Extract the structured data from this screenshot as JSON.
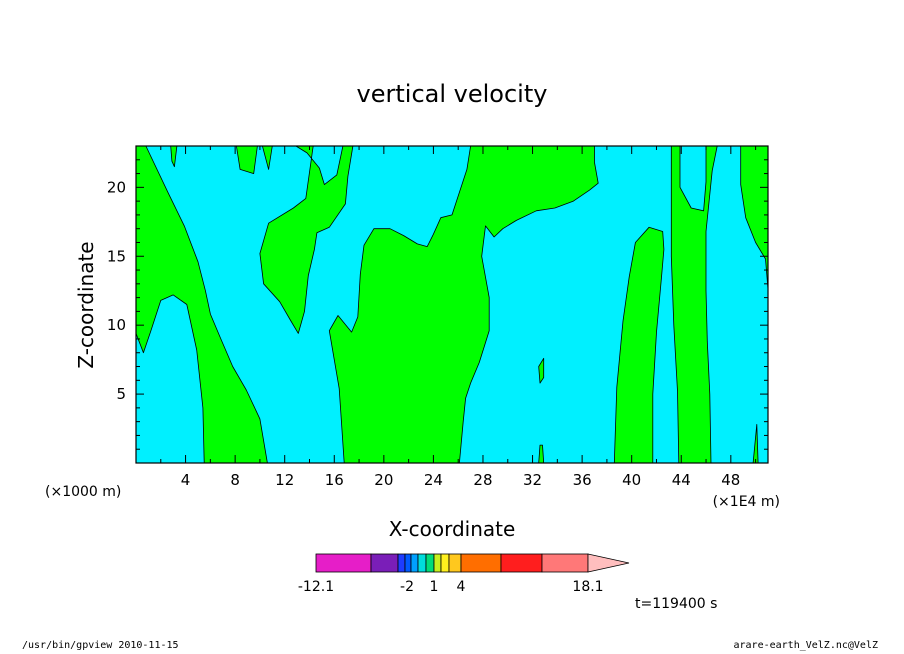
{
  "chart_data": {
    "type": "heatmap",
    "title": "vertical velocity",
    "xlabel": "X-coordinate",
    "ylabel": "Z-coordinate",
    "x_unit_left": "(×1000 m)",
    "x_unit_right": "(×1E4 m)",
    "xlim": [
      0,
      51
    ],
    "ylim": [
      0,
      23
    ],
    "x_ticks": [
      4,
      8,
      12,
      16,
      20,
      24,
      28,
      32,
      36,
      40,
      44,
      48
    ],
    "y_ticks": [
      5,
      10,
      15,
      20
    ],
    "grid": false,
    "fill_colors": {
      "positive": "#00ff00",
      "negative": "#00f0ff"
    },
    "positive_regions": [
      [
        [
          0.0,
          23.0
        ],
        [
          0.8,
          23.0
        ],
        [
          2.6,
          19.6
        ],
        [
          3.9,
          17.2
        ],
        [
          5.0,
          14.6
        ],
        [
          5.6,
          12.5
        ],
        [
          6.0,
          10.8
        ],
        [
          6.8,
          9.1
        ],
        [
          7.8,
          7.0
        ],
        [
          8.9,
          5.3
        ],
        [
          10.0,
          3.2
        ],
        [
          10.6,
          0.0
        ],
        [
          5.5,
          0.0
        ],
        [
          5.4,
          4.0
        ],
        [
          4.9,
          8.2
        ],
        [
          4.1,
          11.5
        ],
        [
          3.0,
          12.2
        ],
        [
          2.0,
          11.8
        ],
        [
          1.2,
          9.6
        ],
        [
          0.6,
          8.0
        ],
        [
          0.0,
          9.4
        ]
      ],
      [
        [
          2.8,
          23.0
        ],
        [
          3.3,
          23.0
        ],
        [
          3.1,
          21.5
        ],
        [
          2.9,
          21.9
        ]
      ],
      [
        [
          8.1,
          23.0
        ],
        [
          9.8,
          23.0
        ],
        [
          9.5,
          21.0
        ],
        [
          8.4,
          21.3
        ]
      ],
      [
        [
          10.2,
          23.0
        ],
        [
          11.0,
          23.0
        ],
        [
          10.7,
          21.3
        ]
      ],
      [
        [
          12.9,
          23.0
        ],
        [
          14.3,
          23.0
        ],
        [
          13.7,
          19.2
        ],
        [
          12.7,
          18.5
        ],
        [
          10.7,
          17.4
        ],
        [
          10.0,
          15.2
        ],
        [
          10.3,
          13.0
        ],
        [
          11.6,
          11.7
        ],
        [
          12.5,
          10.3
        ],
        [
          13.1,
          9.4
        ],
        [
          13.6,
          11.0
        ],
        [
          13.9,
          13.6
        ],
        [
          14.4,
          15.5
        ],
        [
          14.6,
          16.7
        ],
        [
          15.6,
          17.1
        ],
        [
          16.9,
          18.8
        ],
        [
          17.1,
          20.8
        ],
        [
          17.5,
          23.0
        ],
        [
          16.7,
          23.0
        ],
        [
          16.2,
          20.9
        ],
        [
          15.2,
          20.2
        ],
        [
          14.8,
          21.4
        ],
        [
          13.8,
          22.5
        ]
      ],
      [
        [
          16.8,
          0.0
        ],
        [
          16.4,
          5.4
        ],
        [
          15.6,
          9.6
        ],
        [
          16.3,
          10.7
        ],
        [
          17.4,
          9.5
        ],
        [
          17.9,
          10.6
        ],
        [
          18.1,
          13.7
        ],
        [
          18.4,
          15.8
        ],
        [
          19.2,
          17.0
        ],
        [
          20.5,
          17.0
        ],
        [
          21.6,
          16.5
        ],
        [
          22.7,
          15.9
        ],
        [
          23.5,
          15.7
        ],
        [
          24.0,
          16.6
        ],
        [
          24.6,
          17.8
        ],
        [
          25.5,
          18.0
        ],
        [
          26.7,
          21.3
        ],
        [
          27.0,
          23.0
        ],
        [
          37.0,
          23.0
        ],
        [
          37.0,
          21.8
        ],
        [
          37.3,
          20.3
        ],
        [
          36.6,
          19.8
        ],
        [
          35.3,
          19.0
        ],
        [
          33.8,
          18.5
        ],
        [
          32.3,
          18.3
        ],
        [
          30.7,
          17.6
        ],
        [
          29.6,
          17.0
        ],
        [
          28.9,
          16.4
        ],
        [
          28.2,
          17.2
        ],
        [
          27.9,
          15.0
        ],
        [
          28.5,
          12.0
        ],
        [
          28.5,
          9.6
        ],
        [
          27.7,
          7.3
        ],
        [
          27.0,
          5.8
        ],
        [
          26.6,
          4.7
        ],
        [
          26.4,
          3.0
        ],
        [
          26.1,
          0.0
        ]
      ],
      [
        [
          32.5,
          7.0
        ],
        [
          32.9,
          7.6
        ],
        [
          32.9,
          6.2
        ],
        [
          32.6,
          5.8
        ]
      ],
      [
        [
          32.5,
          0.0
        ],
        [
          32.9,
          0.0
        ],
        [
          32.8,
          1.3
        ],
        [
          32.6,
          1.3
        ]
      ],
      [
        [
          38.6,
          0.0
        ],
        [
          38.8,
          5.5
        ],
        [
          39.3,
          10.3
        ],
        [
          39.8,
          13.5
        ],
        [
          40.3,
          16.0
        ],
        [
          41.4,
          17.1
        ],
        [
          42.5,
          16.8
        ],
        [
          42.6,
          15.5
        ],
        [
          42.4,
          13.4
        ],
        [
          42.0,
          9.5
        ],
        [
          41.7,
          5.0
        ],
        [
          41.7,
          0.0
        ]
      ],
      [
        [
          43.2,
          23.0
        ],
        [
          43.9,
          23.0
        ],
        [
          43.9,
          20.0
        ],
        [
          44.8,
          18.5
        ],
        [
          45.8,
          18.3
        ],
        [
          46.0,
          20.4
        ],
        [
          46.0,
          23.0
        ],
        [
          46.9,
          23.0
        ],
        [
          46.5,
          21.2
        ],
        [
          46.0,
          16.8
        ],
        [
          46.0,
          12.5
        ],
        [
          46.1,
          8.8
        ],
        [
          46.3,
          5.0
        ],
        [
          46.4,
          0.0
        ],
        [
          43.8,
          0.0
        ],
        [
          43.7,
          5.2
        ],
        [
          43.4,
          10.0
        ],
        [
          43.2,
          15.0
        ]
      ],
      [
        [
          48.8,
          23.0
        ],
        [
          51.0,
          23.0
        ],
        [
          51.0,
          12.6
        ],
        [
          50.8,
          14.8
        ],
        [
          50.0,
          16.0
        ],
        [
          49.2,
          17.8
        ],
        [
          48.8,
          20.2
        ]
      ],
      [
        [
          49.8,
          0.0
        ],
        [
          50.2,
          0.0
        ],
        [
          50.1,
          2.8
        ]
      ]
    ],
    "colorbar": {
      "colors": [
        "#e61ec8",
        "#7a1eb8",
        "#1e3cff",
        "#005aff",
        "#00a0ff",
        "#00dcdc",
        "#00dc78",
        "#c8f01e",
        "#fff01e",
        "#ffc81e",
        "#ff6e00",
        "#ff1e1e",
        "#ff7878",
        "#ffbebe"
      ],
      "labels": [
        "-12.1",
        "-2",
        "1",
        "4",
        "18.1"
      ]
    },
    "time_label": "t=119400 s"
  },
  "footer": {
    "left": "/usr/bin/gpview  2010-11-15",
    "right": "arare-earth_VelZ.nc@VelZ"
  }
}
